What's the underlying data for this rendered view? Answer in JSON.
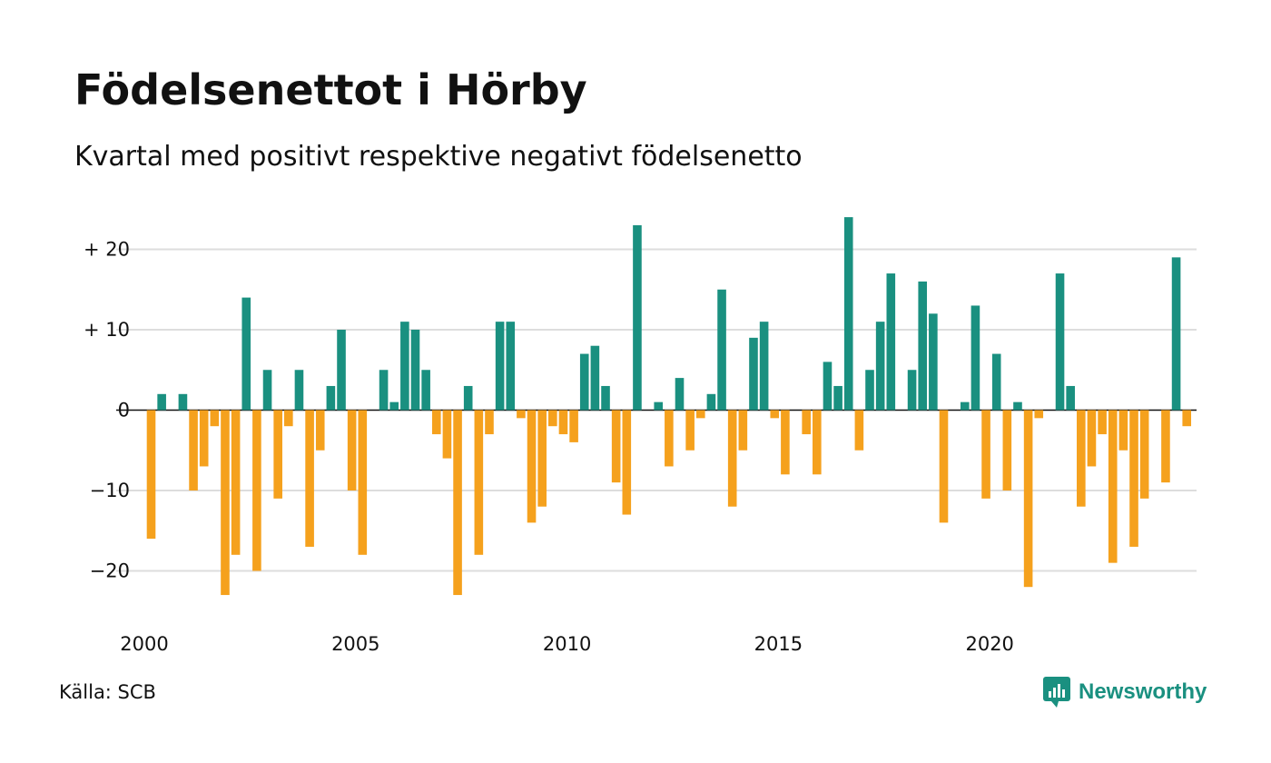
{
  "chart_data": {
    "type": "bar",
    "title": "Födelsenettot i Hörby",
    "subtitle": "Kvartal med positivt respektive negativt födelsenetto",
    "x_start_year": 2000,
    "x_labels": [
      "2000",
      "2005",
      "2010",
      "2015",
      "2020"
    ],
    "y_ticks": [
      {
        "value": 20,
        "label": "+ 20"
      },
      {
        "value": 10,
        "label": "+ 10"
      },
      {
        "value": 0,
        "label": "0"
      },
      {
        "value": -10,
        "label": "−10"
      },
      {
        "value": -20,
        "label": "−20"
      }
    ],
    "ylim": [
      -26,
      24
    ],
    "grid": true,
    "positive_color": "#1a9080",
    "negative_color": "#f5a11d",
    "values": [
      -16,
      2,
      0,
      2,
      -10,
      -7,
      -2,
      -23,
      -18,
      14,
      -20,
      5,
      -11,
      -2,
      5,
      -17,
      -5,
      3,
      10,
      -10,
      -18,
      0,
      5,
      1,
      11,
      10,
      5,
      -3,
      -6,
      -23,
      3,
      -18,
      -3,
      11,
      11,
      -1,
      -14,
      -12,
      -2,
      -3,
      -4,
      7,
      8,
      3,
      -9,
      -13,
      23,
      0,
      1,
      -7,
      4,
      -5,
      -1,
      2,
      15,
      -12,
      -5,
      9,
      11,
      -1,
      -8,
      0,
      -3,
      -8,
      6,
      3,
      24,
      -5,
      5,
      11,
      17,
      0,
      5,
      16,
      12,
      -14,
      0,
      1,
      13,
      -11,
      7,
      -10,
      1,
      -22,
      -1,
      0,
      17,
      3,
      -12,
      -7,
      -3,
      -19,
      -5,
      -17,
      -11,
      0,
      -9,
      19,
      -2
    ]
  },
  "source": "Källa: SCB",
  "brand": "Newsworthy"
}
